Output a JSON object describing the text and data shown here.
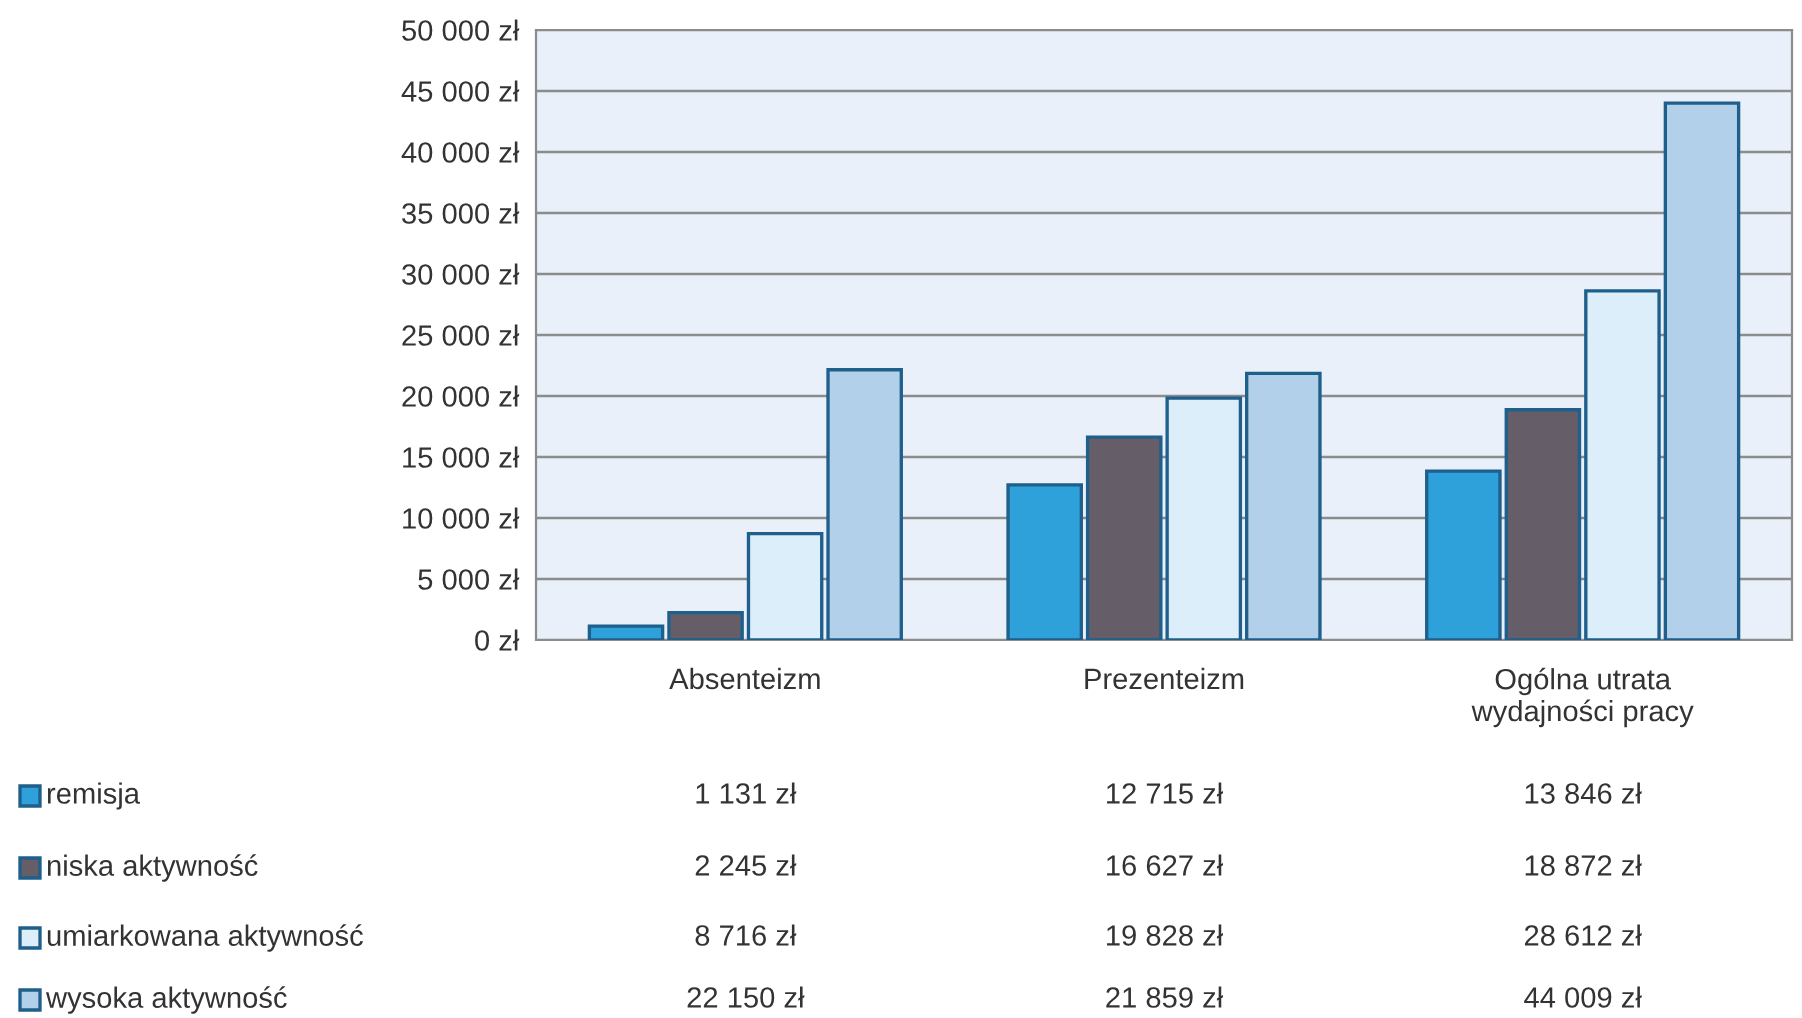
{
  "chart_data": {
    "type": "bar",
    "categories": [
      "Absenteizm",
      "Prezenteizm",
      "Ogólna utrata\nwydajności pracy"
    ],
    "series": [
      {
        "name": "remisja",
        "color": "#2ea0da",
        "values": [
          1131,
          12715,
          13846
        ],
        "value_labels": [
          "1 131 zł",
          "12 715 zł",
          "13 846 zł"
        ]
      },
      {
        "name": "niska aktywność",
        "color": "#655d68",
        "values": [
          2245,
          16627,
          18872
        ],
        "value_labels": [
          "2 245 zł",
          "16 627 zł",
          "18 872 zł"
        ]
      },
      {
        "name": "umiarkowana aktywność",
        "color": "#dbeef9",
        "values": [
          8716,
          19828,
          28612
        ],
        "value_labels": [
          "8 716 zł",
          "19 828 zł",
          "28 612 zł"
        ]
      },
      {
        "name": "wysoka aktywność",
        "color": "#b2d0ea",
        "values": [
          22150,
          21859,
          44009
        ],
        "value_labels": [
          "22 150 zł",
          "21 859 zł",
          "44 009 zł"
        ]
      }
    ],
    "ylim": [
      0,
      50000
    ],
    "yticks": [
      {
        "value": 0,
        "label": "0 zł"
      },
      {
        "value": 5000,
        "label": "5 000 zł"
      },
      {
        "value": 10000,
        "label": "10 000 zł"
      },
      {
        "value": 15000,
        "label": "15 000 zł"
      },
      {
        "value": 20000,
        "label": "20 000 zł"
      },
      {
        "value": 25000,
        "label": "25 000 zł"
      },
      {
        "value": 30000,
        "label": "30 000 zł"
      },
      {
        "value": 35000,
        "label": "35 000 zł"
      },
      {
        "value": 40000,
        "label": "40 000 zł"
      },
      {
        "value": 45000,
        "label": "45 000 zł"
      },
      {
        "value": 50000,
        "label": "50 000 zł"
      }
    ],
    "grid": "y",
    "legend": "bottom"
  }
}
